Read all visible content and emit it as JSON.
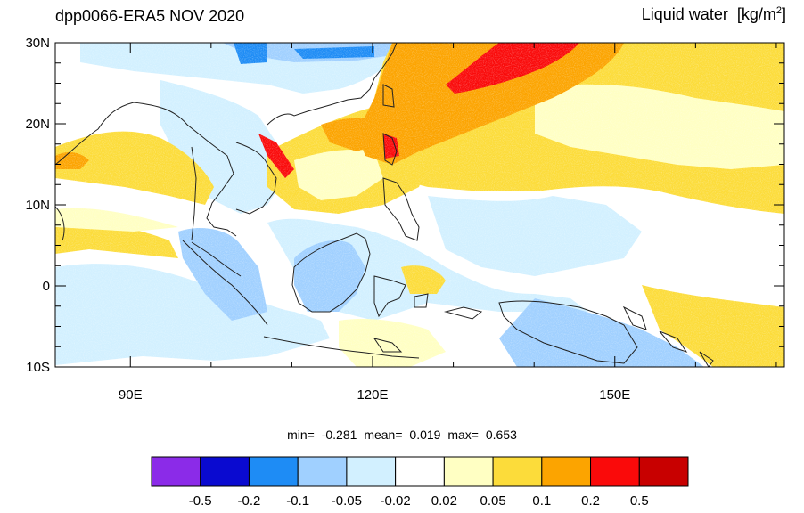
{
  "map": {
    "title": "dpp0066-ERA5 NOV 2020",
    "variable": "Liquid water",
    "units_main": "[kg/m",
    "units_sup": "2",
    "units_close": "]",
    "lat_ticks": [
      {
        "label": "30N",
        "lat": 30
      },
      {
        "label": "20N",
        "lat": 20
      },
      {
        "label": "10N",
        "lat": 10
      },
      {
        "label": "0",
        "lat": 0
      },
      {
        "label": "10S",
        "lat": -10
      }
    ],
    "lon_ticks": [
      {
        "label": "90E",
        "lon": 90
      },
      {
        "label": "120E",
        "lon": 120
      },
      {
        "label": "150E",
        "lon": 150
      }
    ],
    "lon_range": [
      80.7,
      171
    ],
    "lat_range": [
      -10,
      30
    ]
  },
  "stats": {
    "min_label": "min=",
    "min": "-0.281",
    "mean_label": "mean=",
    "mean": "0.019",
    "max_label": "max=",
    "max": "0.653"
  },
  "colorbar": {
    "labels": [
      "-0.5",
      "-0.2",
      "-0.1",
      "-0.05",
      "-0.02",
      "0.02",
      "0.05",
      "0.1",
      "0.2",
      "0.5"
    ],
    "colors": [
      "#8b2be8",
      "#0a0ad0",
      "#1e8cf5",
      "#a0d0ff",
      "#d2f0ff",
      "#ffffff",
      "#ffffc3",
      "#fcdc3a",
      "#fca400",
      "#fa0a0a",
      "#c80000"
    ]
  }
}
